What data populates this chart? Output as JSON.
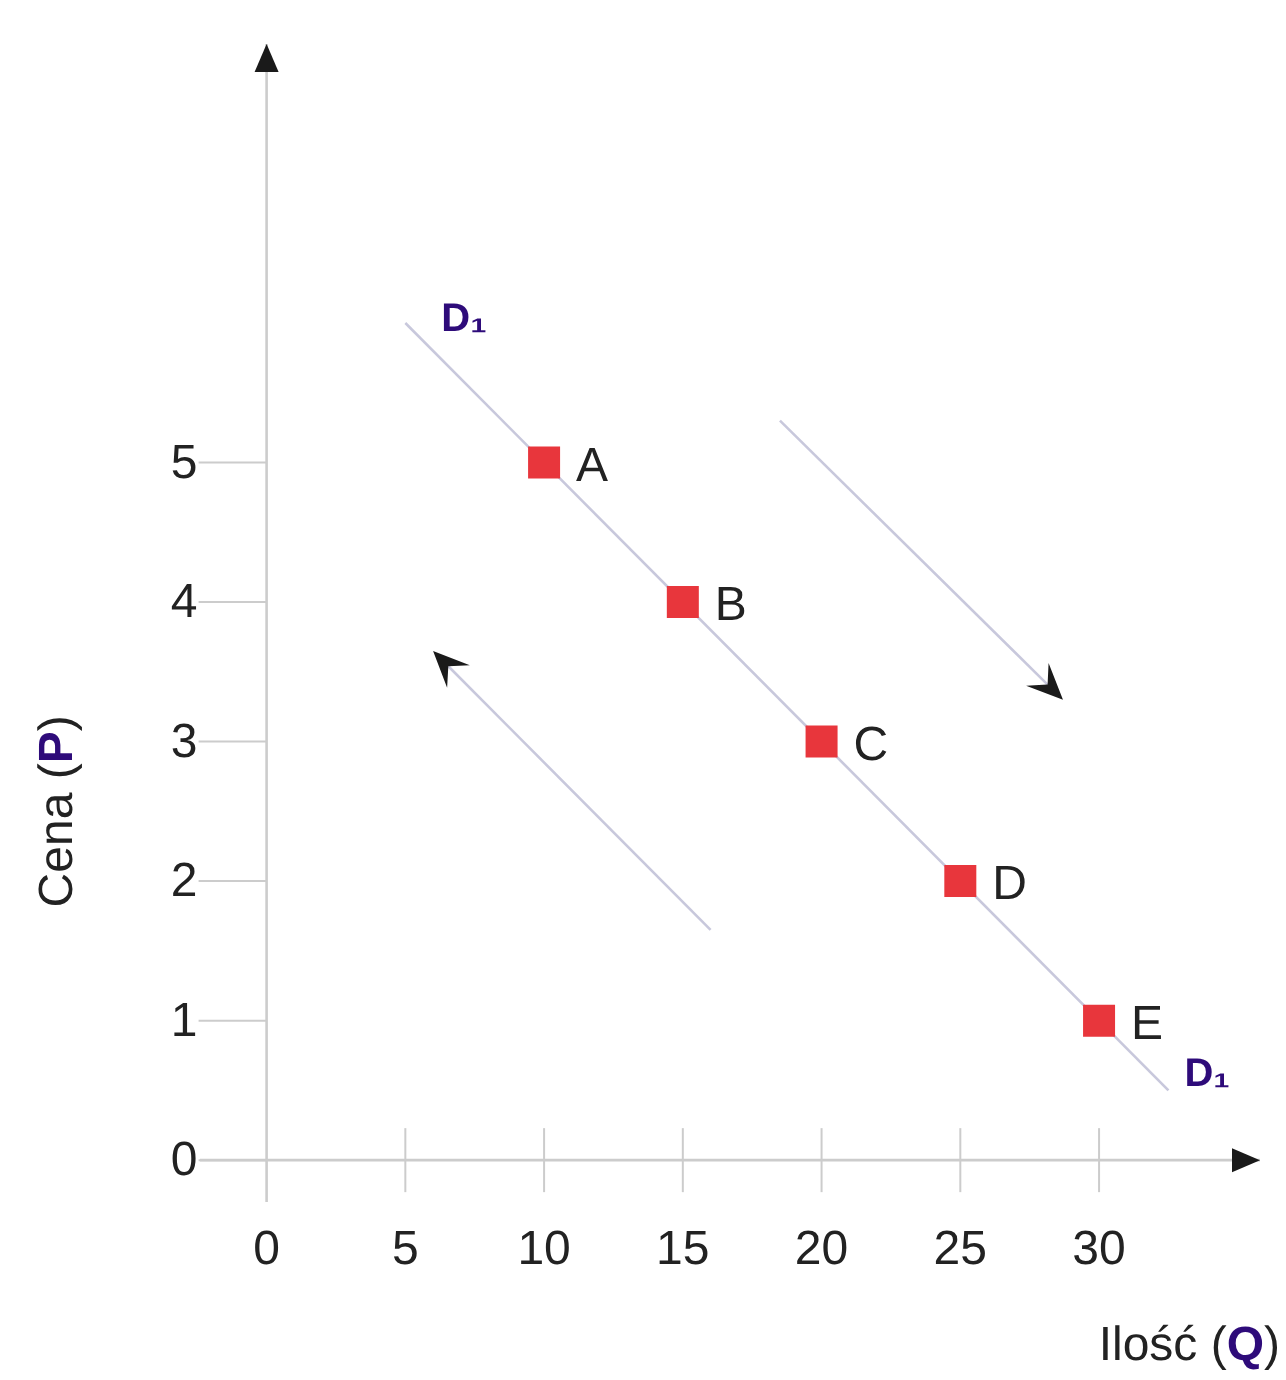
{
  "chart_data": {
    "type": "scatter",
    "xlabel": "Ilość (Q)",
    "ylabel": "Cena (P)",
    "xlim": [
      -2.4,
      35.8
    ],
    "ylim": [
      -0.3,
      8
    ],
    "xticks": [
      0,
      5,
      10,
      15,
      20,
      25,
      30
    ],
    "yticks": [
      0,
      1,
      2,
      3,
      4,
      5
    ],
    "grid": false,
    "marker": "square",
    "series": [
      {
        "name": "D₁",
        "type": "line",
        "color": "#c8c8dc",
        "x": [
          5,
          32.5
        ],
        "values": [
          6,
          0.5
        ],
        "line_style": "solid",
        "marker": "none"
      },
      {
        "color": "#e8363c",
        "x": [
          10,
          15,
          20,
          25,
          30
        ],
        "values": [
          5,
          4,
          3,
          2,
          1
        ]
      }
    ],
    "annotations": [
      {
        "text": "A",
        "x": 10,
        "y": 5
      },
      {
        "text": "B",
        "x": 15,
        "y": 4
      },
      {
        "text": "C",
        "x": 20,
        "y": 3
      },
      {
        "text": "D",
        "x": 25,
        "y": 2
      },
      {
        "text": "E",
        "x": 30,
        "y": 1
      }
    ]
  }
}
